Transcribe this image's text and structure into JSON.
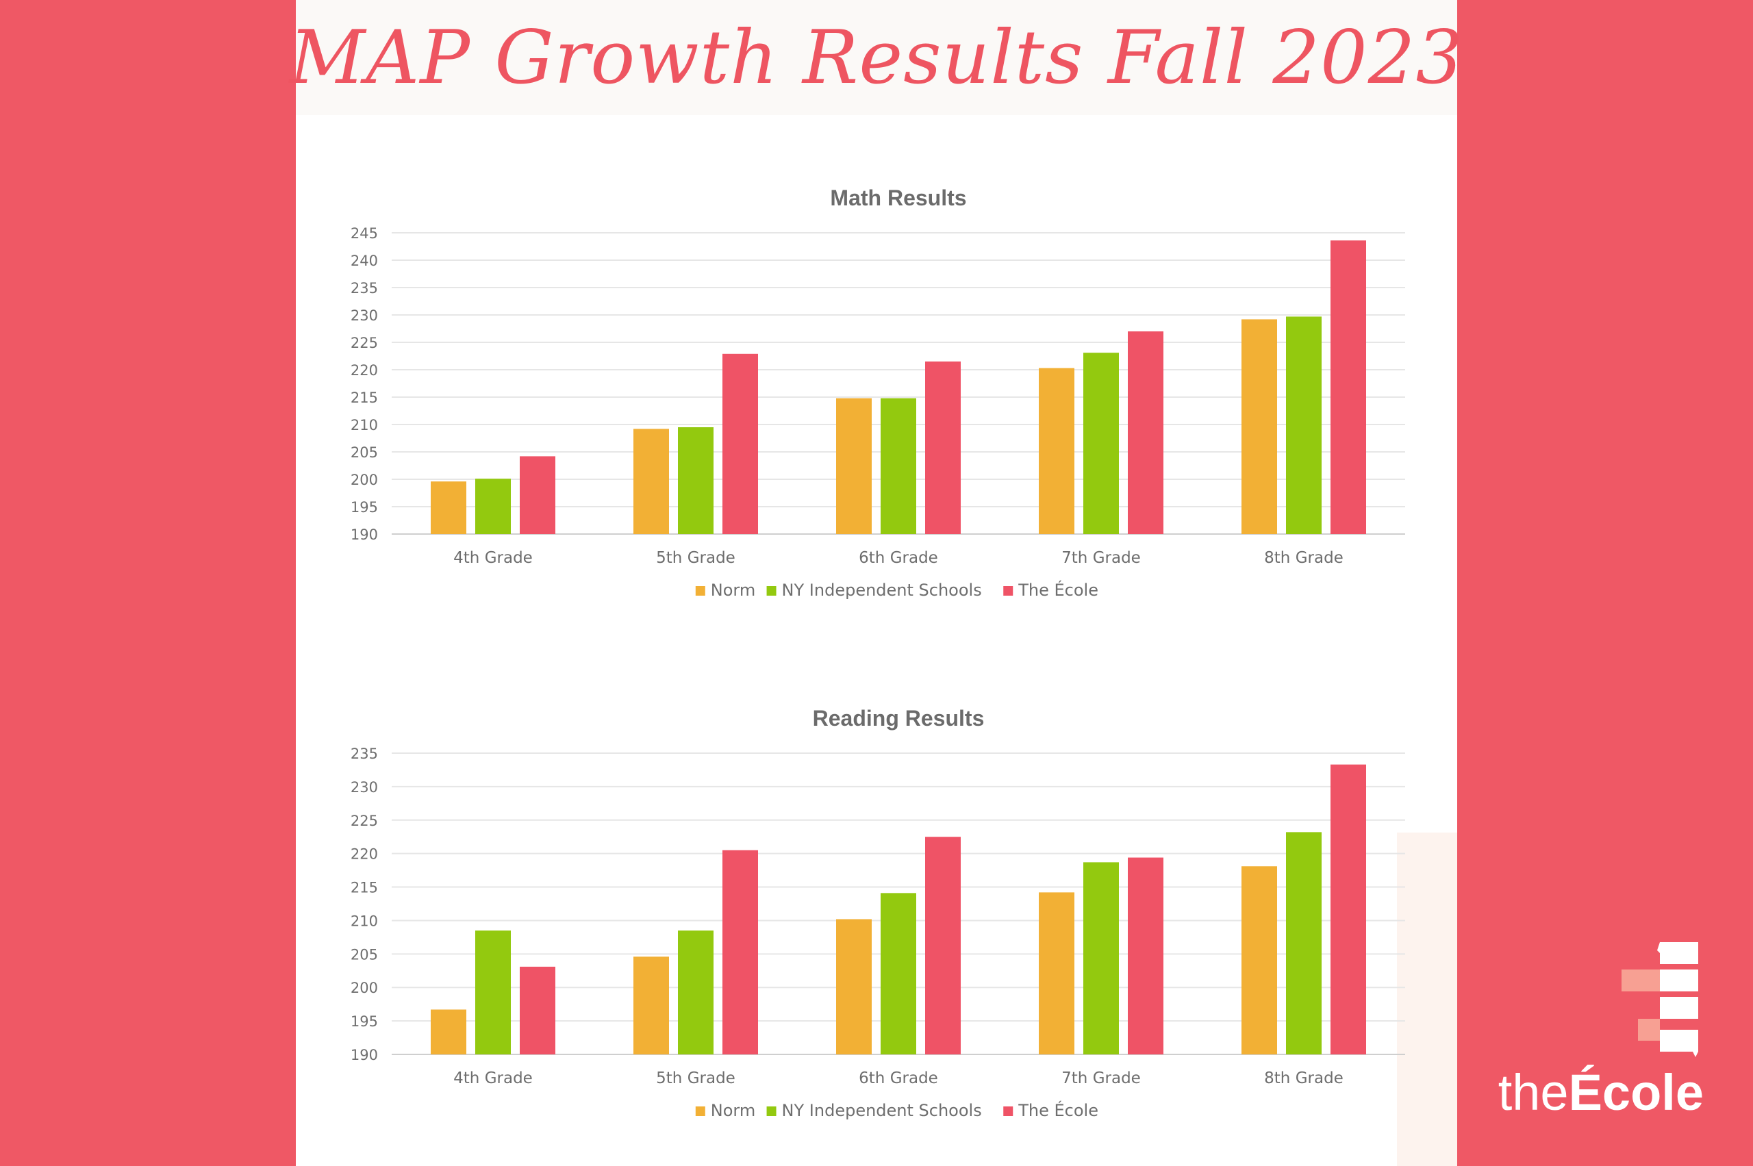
{
  "header": {
    "title": "MAP Growth Results Fall 2023"
  },
  "brand": {
    "logo_light": "the",
    "logo_bold": "École"
  },
  "colors": {
    "background": "#ef5865",
    "norm": "#f2b035",
    "ny_independent": "#93c90f",
    "the_ecole": "#ef5366",
    "title": "#ee5561"
  },
  "chart_data": [
    {
      "type": "bar",
      "title": "Math Results",
      "categories": [
        "4th Grade",
        "5th Grade",
        "6th Grade",
        "7th Grade",
        "8th Grade"
      ],
      "series": [
        {
          "name": "Norm",
          "color": "#f2b035",
          "values": [
            199.6,
            209.2,
            214.8,
            220.3,
            229.2
          ]
        },
        {
          "name": "NY Independent Schools",
          "color": "#93c90f",
          "values": [
            200.1,
            209.5,
            214.8,
            223.1,
            229.7
          ]
        },
        {
          "name": "The École",
          "color": "#ef5366",
          "values": [
            204.2,
            222.9,
            221.5,
            227.0,
            243.6
          ]
        }
      ],
      "ylim": [
        190,
        245
      ],
      "yticks": [
        190,
        195,
        200,
        205,
        210,
        215,
        220,
        225,
        230,
        235,
        240,
        245
      ],
      "grid": true,
      "legend": "bottom"
    },
    {
      "type": "bar",
      "title": "Reading Results",
      "categories": [
        "4th Grade",
        "5th Grade",
        "6th Grade",
        "7th Grade",
        "8th Grade"
      ],
      "series": [
        {
          "name": "Norm",
          "color": "#f2b035",
          "values": [
            196.7,
            204.6,
            210.2,
            214.2,
            218.1
          ]
        },
        {
          "name": "NY Independent Schools",
          "color": "#93c90f",
          "values": [
            208.5,
            208.5,
            214.1,
            218.7,
            223.2
          ]
        },
        {
          "name": "The École",
          "color": "#ef5366",
          "values": [
            203.1,
            220.5,
            222.5,
            219.4,
            233.3
          ]
        }
      ],
      "ylim": [
        190,
        235
      ],
      "yticks": [
        190,
        195,
        200,
        205,
        210,
        215,
        220,
        225,
        230,
        235
      ],
      "grid": true,
      "legend": "bottom"
    }
  ]
}
